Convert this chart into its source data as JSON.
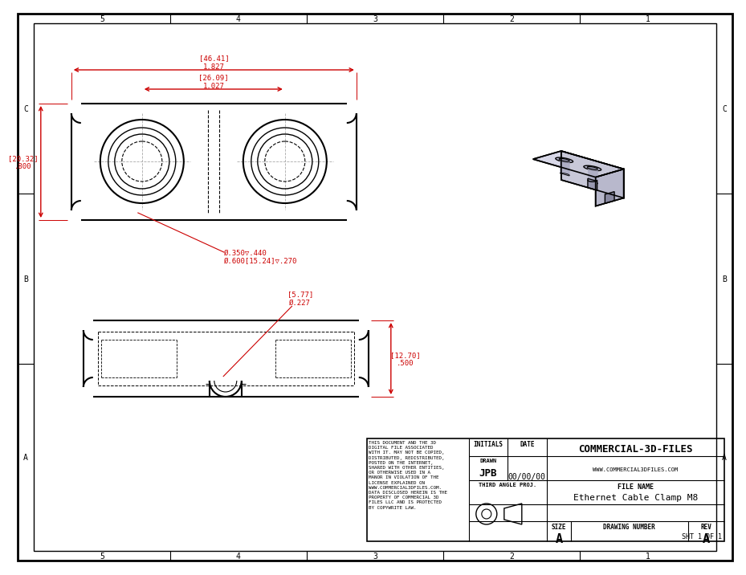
{
  "bg_color": "#ffffff",
  "border_color": "#000000",
  "dim_color": "#cc0000",
  "drawing_color": "#000000",
  "company": "COMMERCIAL-3D-FILES",
  "website": "WWW.COMMERCIAL3DFILES.COM",
  "file_name": "Ethernet Cable Clamp M8",
  "initials_label": "INITIALS",
  "date_label": "DATE",
  "drawn_label": "DRAWN",
  "initials": "JPB",
  "date": "00/00/00",
  "size": "A",
  "rev": "A",
  "sheet": "SHT 1 OF 1",
  "third_angle": "THIRD ANGLE PROJ.",
  "size_label": "SIZE",
  "drawing_number_label": "DRAWING NUMBER",
  "rev_label": "REV",
  "file_name_label": "FILE NAME",
  "legal_text": "THIS DOCUMENT AND THE 3D\nDIGITAL FILE ASSOCIATED\nWITH IT. MAY NOT BE COPIED,\nDISTRIBUTED, REDISTRIBUTED,\nPOSTED ON THE INTERNET,\nSHARED WITH OTHER ENTITIES,\nOR OTHERWISE USED IN A\nMANOR IN VIOLATION OF THE\nLICENSE EXPLAINED ON\nWWW.COMMERCIAL3DFILES.COM.\nDATA DISCLOSED HEREIN IS THE\nPROPERTY OF COMMERCIAL 3D\nFILES LLC AND IS PROTECTED\nBY COPYWRITE LAW.",
  "row_labels": [
    "C",
    "B",
    "A"
  ],
  "col_labels": [
    "5",
    "4",
    "3",
    "2",
    "1"
  ],
  "dim_46_41": "[46.41]\n1.827",
  "dim_26_09": "[26.09]\n1.027",
  "dim_20_32": "[20.32]\n.800",
  "dim_hole": "Ø.350▽.440\nØ.600[15.24]▽.270",
  "dim_5_77": "[5.77]\nØ.227",
  "dim_12_70": "[12.70]\n.500",
  "iso_face_top": "#d0d0e0",
  "iso_face_front": "#c0c0d4",
  "iso_face_right": "#b0b0c8",
  "iso_hole_outer": "#b8b8cc",
  "iso_hole_inner": "#9090aa"
}
